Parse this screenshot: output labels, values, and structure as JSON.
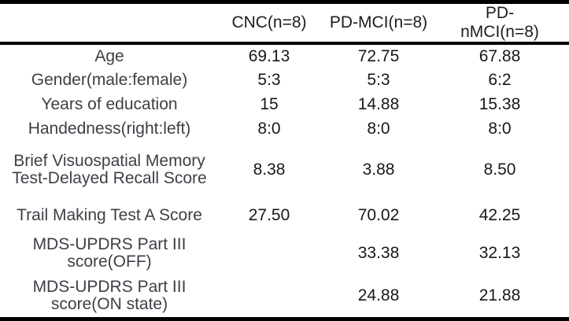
{
  "table": {
    "columns": [
      "",
      "CNC(n=8)",
      "PD-MCI(n=8)",
      "PD-nMCI(n=8)"
    ],
    "rows": [
      {
        "label": "Age",
        "values": [
          "69.13",
          "72.75",
          "67.88"
        ]
      },
      {
        "label": "Gender(male:female)",
        "values": [
          "5:3",
          "5:3",
          "6:2"
        ]
      },
      {
        "label": "Years of education",
        "values": [
          "15",
          "14.88",
          "15.38"
        ]
      },
      {
        "label": "Handedness(right:left)",
        "values": [
          "8:0",
          "8:0",
          "8:0"
        ]
      },
      {
        "label": "Brief Visuospatial Memory\nTest-Delayed Recall Score",
        "values": [
          "8.38",
          "3.88",
          "8.50"
        ]
      },
      {
        "label": "Trail Making Test A Score",
        "values": [
          "27.50",
          "70.02",
          "42.25"
        ]
      },
      {
        "label": "MDS-UPDRS Part III\nscore(OFF)",
        "values": [
          "",
          "33.38",
          "32.13"
        ]
      },
      {
        "label": "MDS-UPDRS Part III\nscore(ON state)",
        "values": [
          "",
          "24.88",
          "21.88"
        ]
      }
    ]
  },
  "chart_data": {
    "type": "table",
    "title": "",
    "categories": [
      "CNC(n=8)",
      "PD-MCI(n=8)",
      "PD-nMCI(n=8)"
    ],
    "series": [
      {
        "name": "Age",
        "values": [
          69.13,
          72.75,
          67.88
        ]
      },
      {
        "name": "Gender(male:female)",
        "values": [
          "5:3",
          "5:3",
          "6:2"
        ]
      },
      {
        "name": "Years of education",
        "values": [
          15,
          14.88,
          15.38
        ]
      },
      {
        "name": "Handedness(right:left)",
        "values": [
          "8:0",
          "8:0",
          "8:0"
        ]
      },
      {
        "name": "Brief Visuospatial Memory Test-Delayed Recall Score",
        "values": [
          8.38,
          3.88,
          8.5
        ]
      },
      {
        "name": "Trail Making Test A Score",
        "values": [
          27.5,
          70.02,
          42.25
        ]
      },
      {
        "name": "MDS-UPDRS Part III score(OFF)",
        "values": [
          null,
          33.38,
          32.13
        ]
      },
      {
        "name": "MDS-UPDRS Part III score(ON state)",
        "values": [
          null,
          24.88,
          21.88
        ]
      }
    ]
  },
  "colors": {
    "rule": "#000000",
    "label_text": "#3c4046",
    "value_text": "#17181b",
    "background": "#ffffff"
  }
}
